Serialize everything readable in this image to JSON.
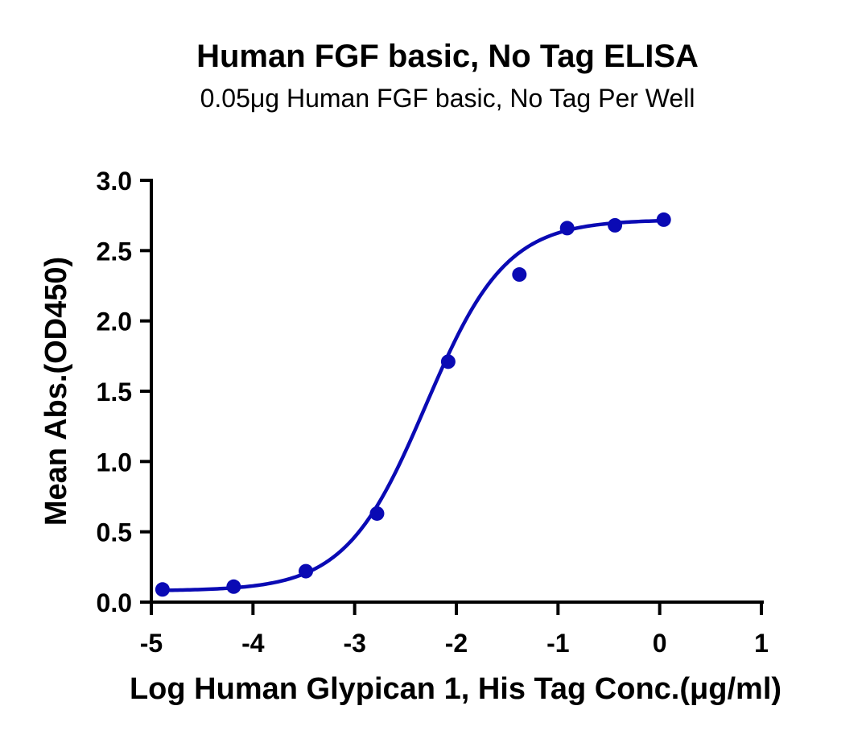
{
  "chart_data": {
    "type": "scatter",
    "title": "Human FGF basic, No Tag ELISA",
    "subtitle": "0.05μg Human FGF basic, No Tag Per Well",
    "xlabel": "Log Human Glypican 1, His Tag Conc.(μg/ml)",
    "ylabel": "Mean Abs.(OD450)",
    "xlim": [
      -5,
      1
    ],
    "ylim": [
      0,
      3
    ],
    "x_ticks": [
      "-5",
      "-4",
      "-3",
      "-2",
      "-1",
      "0",
      "1"
    ],
    "y_ticks": [
      "0.0",
      "0.5",
      "1.0",
      "1.5",
      "2.0",
      "2.5",
      "3.0"
    ],
    "grid": false,
    "color": "#0a0ab4",
    "series": [
      {
        "points": [
          {
            "x": -4.89,
            "y": 0.09
          },
          {
            "x": -4.19,
            "y": 0.11
          },
          {
            "x": -3.48,
            "y": 0.22
          },
          {
            "x": -2.78,
            "y": 0.63
          },
          {
            "x": -2.08,
            "y": 1.71
          },
          {
            "x": -1.38,
            "y": 2.33
          },
          {
            "x": -0.91,
            "y": 2.66
          },
          {
            "x": -0.44,
            "y": 2.68
          },
          {
            "x": 0.04,
            "y": 2.72
          }
        ],
        "fit": {
          "bottom": 0.08,
          "top": 2.72,
          "logEC50": -2.3,
          "hill": 1.1
        }
      }
    ]
  }
}
